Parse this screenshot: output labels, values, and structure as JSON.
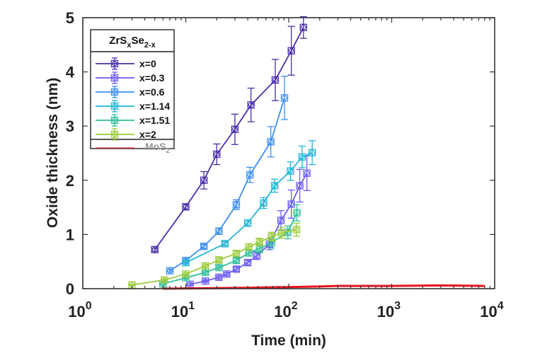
{
  "chart_data": {
    "type": "line",
    "title": "",
    "xlabel": "Time (min)",
    "ylabel": "Oxide thickness (nm)",
    "xscale": "log",
    "xlim": [
      1,
      10000
    ],
    "ylim": [
      0,
      5
    ],
    "x_ticks": [
      {
        "value": 1,
        "base": "10",
        "exp": "0"
      },
      {
        "value": 10,
        "base": "10",
        "exp": "1"
      },
      {
        "value": 100,
        "base": "10",
        "exp": "2"
      },
      {
        "value": 1000,
        "base": "10",
        "exp": "3"
      },
      {
        "value": 10000,
        "base": "10",
        "exp": "4"
      }
    ],
    "y_ticks": [
      "0",
      "1",
      "2",
      "3",
      "4",
      "5"
    ],
    "grid": false,
    "legend": {
      "placement": "top-left",
      "title": {
        "base": "ZrS",
        "sub1": "x",
        "mid": "Se",
        "sub2": "2-x"
      },
      "footer": {
        "base": "MoS",
        "sub": "2"
      }
    },
    "series": [
      {
        "name": "x=0",
        "color": "#4b2fa8",
        "marker": "square-circle",
        "x": [
          5,
          10,
          15,
          20,
          30,
          43,
          74,
          106,
          139
        ],
        "y": [
          0.72,
          1.51,
          2.0,
          2.48,
          2.94,
          3.39,
          3.85,
          4.39,
          4.82
        ],
        "err": [
          0.03,
          0.05,
          0.16,
          0.19,
          0.28,
          0.31,
          0.38,
          0.45,
          0.2
        ]
      },
      {
        "name": "x=0.3",
        "color": "#6a5cf0",
        "marker": "square-circle",
        "x": [
          11,
          15.5,
          21,
          25,
          31,
          40,
          49,
          65,
          84,
          106,
          128,
          150
        ],
        "y": [
          0.08,
          0.14,
          0.21,
          0.27,
          0.36,
          0.48,
          0.61,
          0.82,
          1.26,
          1.56,
          1.9,
          2.13
        ],
        "err": [
          0.02,
          0.02,
          0.03,
          0.03,
          0.04,
          0.05,
          0.07,
          0.1,
          0.18,
          0.26,
          0.3,
          0.32
        ]
      },
      {
        "name": "x=0.6",
        "color": "#3d8fef",
        "marker": "square-circle",
        "x": [
          7,
          10,
          15,
          21,
          31,
          42,
          67,
          91
        ],
        "y": [
          0.33,
          0.52,
          0.78,
          1.06,
          1.55,
          2.1,
          2.71,
          3.52
        ],
        "err": [
          0.02,
          0.03,
          0.04,
          0.06,
          0.09,
          0.14,
          0.28,
          0.4
        ]
      },
      {
        "name": "x=1.14",
        "color": "#21b6d6",
        "marker": "square-circle",
        "x": [
          10,
          24,
          40,
          57,
          73,
          104,
          135,
          169
        ],
        "y": [
          0.48,
          0.83,
          1.21,
          1.58,
          1.9,
          2.17,
          2.43,
          2.51
        ],
        "err": [
          0.03,
          0.04,
          0.06,
          0.1,
          0.12,
          0.17,
          0.2,
          0.22
        ]
      },
      {
        "name": "x=1.51",
        "color": "#2fbf9b",
        "marker": "square-circle",
        "x": [
          6,
          10,
          15.5,
          21,
          31,
          41,
          52,
          68,
          98,
          120
        ],
        "y": [
          0.09,
          0.2,
          0.3,
          0.39,
          0.52,
          0.66,
          0.74,
          0.85,
          1.04,
          1.4
        ],
        "err": [
          0.02,
          0.02,
          0.03,
          0.03,
          0.05,
          0.06,
          0.08,
          0.1,
          0.12,
          0.15
        ]
      },
      {
        "name": "x=2",
        "color": "#9ccc3c",
        "marker": "square-circle",
        "x": [
          3,
          6.2,
          10,
          15.5,
          21,
          31,
          41,
          52,
          68,
          85,
          119
        ],
        "y": [
          0.07,
          0.16,
          0.27,
          0.42,
          0.53,
          0.65,
          0.77,
          0.86,
          0.96,
          1.03,
          1.09
        ],
        "err": [
          0.01,
          0.02,
          0.02,
          0.03,
          0.04,
          0.05,
          0.06,
          0.07,
          0.08,
          0.1,
          0.12
        ]
      },
      {
        "name": "MoS2",
        "color": "#e8141e",
        "marker": "none",
        "x": [
          6,
          20,
          50,
          100,
          200,
          300,
          1000,
          3000,
          8000
        ],
        "y": [
          0.0,
          0.01,
          0.02,
          0.03,
          0.04,
          0.05,
          0.05,
          0.06,
          0.05
        ],
        "err": []
      }
    ]
  }
}
